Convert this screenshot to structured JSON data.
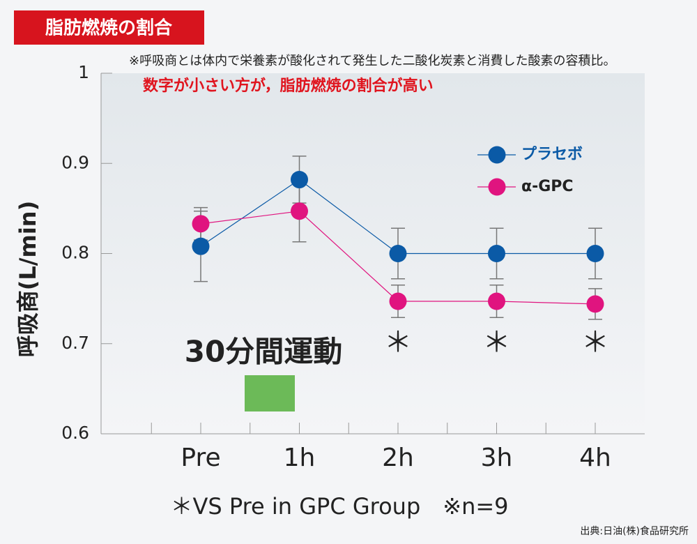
{
  "chart_data": {
    "type": "line",
    "title": "脂肪燃焼の割合",
    "note": "※呼吸商とは体内で栄養素が酸化されて発生した二酸化炭素と消費した酸素の容積比。",
    "subtitle": "数字が小さい方が，脂肪燃焼の割合が高い",
    "y_label": "呼吸商(L/min)",
    "annotation": "30分間運動",
    "significance_marks": [
      "＊",
      "＊",
      "＊"
    ],
    "footnote": "＊VS Pre in GPC Group　※n=9",
    "source": "出典:日油(株)食品研究所",
    "categories": [
      "Pre",
      "1h",
      "2h",
      "3h",
      "4h"
    ],
    "series": [
      {
        "name": "プラセボ",
        "color": "#0b5aa6",
        "values": [
          0.808,
          0.882,
          0.8,
          0.8,
          0.8
        ],
        "errors": [
          0.039,
          0.026,
          0.028,
          0.028,
          0.028
        ]
      },
      {
        "name": "α-GPC",
        "color": "#e0147f",
        "values": [
          0.833,
          0.847,
          0.747,
          0.747,
          0.744
        ],
        "errors": [
          0.018,
          0.034,
          0.018,
          0.018,
          0.017
        ]
      }
    ],
    "ylim": [
      0.6,
      1
    ],
    "yticks": [
      0.6,
      0.7,
      0.8,
      0.9,
      1
    ],
    "legend": "upper right"
  }
}
